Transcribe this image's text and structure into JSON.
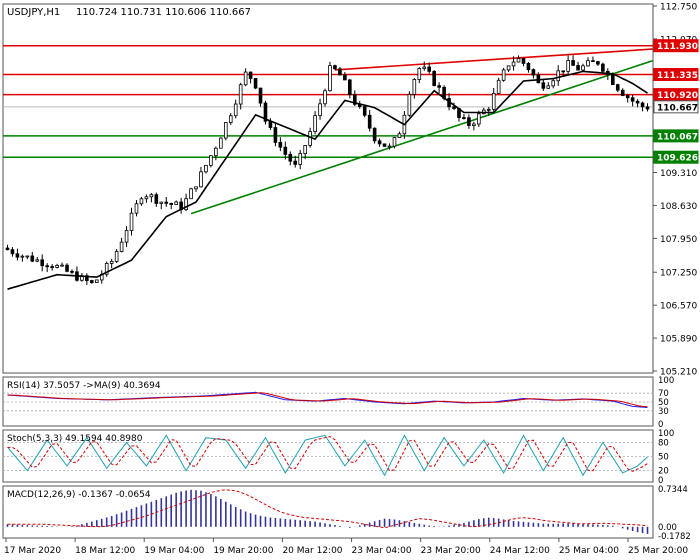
{
  "chart_data": {
    "type": "candlestick",
    "title": "USDJPY,H1",
    "ohlc_readout": "110.724 110.731 110.606 110.667",
    "price_axis": {
      "min": 105.21,
      "max": 112.75,
      "ticks": [
        "112.750",
        "112.070",
        "111.390",
        "110.710",
        "110.030",
        "109.310",
        "108.630",
        "107.950",
        "107.250",
        "106.570",
        "105.890",
        "105.210"
      ]
    },
    "x_axis_labels": [
      "17 Mar 2020",
      "18 Mar 12:00",
      "19 Mar 04:00",
      "19 Mar 20:00",
      "20 Mar 12:00",
      "23 Mar 04:00",
      "23 Mar 20:00",
      "24 Mar 12:00",
      "25 Mar 04:00",
      "25 Mar 20:00"
    ],
    "price_path": [
      [
        0,
        107.75
      ],
      [
        5,
        107.55
      ],
      [
        10,
        107.4
      ],
      [
        15,
        107.15
      ],
      [
        18,
        107.0
      ],
      [
        22,
        107.5
      ],
      [
        25,
        108.2
      ],
      [
        28,
        108.9
      ],
      [
        32,
        108.7
      ],
      [
        36,
        108.6
      ],
      [
        40,
        109.3
      ],
      [
        43,
        109.9
      ],
      [
        46,
        110.6
      ],
      [
        49,
        111.4
      ],
      [
        51,
        111.1
      ],
      [
        53,
        110.3
      ],
      [
        56,
        109.8
      ],
      [
        59,
        109.4
      ],
      [
        62,
        110.2
      ],
      [
        64,
        110.8
      ],
      [
        66,
        111.5
      ],
      [
        68,
        111.3
      ],
      [
        70,
        110.9
      ],
      [
        73,
        110.4
      ],
      [
        75,
        110.0
      ],
      [
        78,
        109.8
      ],
      [
        80,
        110.2
      ],
      [
        82,
        111.1
      ],
      [
        84,
        111.5
      ],
      [
        86,
        111.3
      ],
      [
        88,
        111.0
      ],
      [
        90,
        110.7
      ],
      [
        92,
        110.4
      ],
      [
        94,
        110.3
      ],
      [
        96,
        110.5
      ],
      [
        98,
        110.7
      ],
      [
        100,
        111.2
      ],
      [
        102,
        111.6
      ],
      [
        104,
        111.65
      ],
      [
        106,
        111.45
      ],
      [
        108,
        111.1
      ],
      [
        110,
        111.2
      ],
      [
        112,
        111.4
      ],
      [
        114,
        111.55
      ],
      [
        116,
        111.45
      ],
      [
        118,
        111.55
      ],
      [
        120,
        111.6
      ],
      [
        122,
        111.3
      ],
      [
        124,
        111.05
      ],
      [
        126,
        110.85
      ],
      [
        128,
        110.7
      ],
      [
        129,
        110.667
      ]
    ],
    "ma_path": [
      [
        0,
        106.9
      ],
      [
        10,
        107.2
      ],
      [
        18,
        107.15
      ],
      [
        25,
        107.5
      ],
      [
        32,
        108.4
      ],
      [
        38,
        108.7
      ],
      [
        44,
        109.6
      ],
      [
        50,
        110.5
      ],
      [
        56,
        110.25
      ],
      [
        62,
        110.0
      ],
      [
        68,
        110.8
      ],
      [
        74,
        110.65
      ],
      [
        80,
        110.3
      ],
      [
        86,
        111.0
      ],
      [
        92,
        110.55
      ],
      [
        98,
        110.55
      ],
      [
        104,
        111.2
      ],
      [
        110,
        111.25
      ],
      [
        116,
        111.4
      ],
      [
        122,
        111.35
      ],
      [
        126,
        111.15
      ],
      [
        129,
        110.95
      ]
    ],
    "horizontal_levels": [
      {
        "label": "111.930",
        "value": 111.93,
        "color": "#e00000"
      },
      {
        "label": "111.335",
        "value": 111.335,
        "color": "#e00000"
      },
      {
        "label": "110.920",
        "value": 110.92,
        "color": "#e00000"
      },
      {
        "label": "110.667",
        "value": 110.667,
        "color": "#555555"
      },
      {
        "label": "110.067",
        "value": 110.067,
        "color": "#008000"
      },
      {
        "label": "109.626",
        "value": 109.626,
        "color": "#008000"
      }
    ],
    "trendlines": [
      {
        "color": "#e00000",
        "from": [
          66,
          111.43
        ],
        "to": [
          130,
          111.86
        ]
      },
      {
        "color": "#008000",
        "from": [
          37,
          108.46
        ],
        "to": [
          130,
          111.62
        ]
      }
    ],
    "rsi": {
      "label": "RSI(14) 37.5057  ->MA(9) 40.3694",
      "min": 0,
      "max": 100,
      "ticks": [
        "100",
        "70",
        "50",
        "30",
        "0"
      ],
      "path": [
        [
          0,
          66
        ],
        [
          10,
          58
        ],
        [
          20,
          55
        ],
        [
          30,
          60
        ],
        [
          40,
          64
        ],
        [
          45,
          68
        ],
        [
          50,
          72
        ],
        [
          56,
          55
        ],
        [
          62,
          52
        ],
        [
          68,
          58
        ],
        [
          74,
          50
        ],
        [
          80,
          46
        ],
        [
          86,
          52
        ],
        [
          92,
          48
        ],
        [
          98,
          50
        ],
        [
          104,
          58
        ],
        [
          110,
          54
        ],
        [
          116,
          57
        ],
        [
          122,
          52
        ],
        [
          126,
          40
        ],
        [
          129,
          37.5
        ]
      ]
    },
    "stoch": {
      "label": "Stoch(5,3,3) 49.1594 40.8980",
      "min": 0,
      "max": 100,
      "ticks": [
        "100",
        "80",
        "50",
        "20",
        "0"
      ],
      "path": [
        [
          0,
          70
        ],
        [
          4,
          20
        ],
        [
          8,
          85
        ],
        [
          12,
          30
        ],
        [
          16,
          90
        ],
        [
          20,
          25
        ],
        [
          24,
          80
        ],
        [
          28,
          30
        ],
        [
          32,
          95
        ],
        [
          36,
          20
        ],
        [
          40,
          90
        ],
        [
          44,
          85
        ],
        [
          48,
          25
        ],
        [
          52,
          90
        ],
        [
          56,
          15
        ],
        [
          60,
          85
        ],
        [
          64,
          95
        ],
        [
          68,
          30
        ],
        [
          72,
          85
        ],
        [
          76,
          10
        ],
        [
          80,
          95
        ],
        [
          84,
          20
        ],
        [
          88,
          90
        ],
        [
          92,
          30
        ],
        [
          96,
          85
        ],
        [
          100,
          15
        ],
        [
          104,
          95
        ],
        [
          108,
          20
        ],
        [
          112,
          90
        ],
        [
          116,
          10
        ],
        [
          120,
          80
        ],
        [
          124,
          15
        ],
        [
          127,
          30
        ],
        [
          129,
          49
        ]
      ]
    },
    "macd": {
      "label": "MACD(12,26,9) -0.1367 -0.0654",
      "ticks": [
        "0.7344",
        "0.00",
        "-0.1782"
      ],
      "min": -0.1782,
      "max": 0.7344,
      "bars": [
        0.05,
        0.04,
        0.03,
        0.02,
        0.01,
        0.0,
        0.02,
        0.08,
        0.14,
        0.2,
        0.28,
        0.36,
        0.44,
        0.52,
        0.6,
        0.68,
        0.72,
        0.7,
        0.62,
        0.5,
        0.38,
        0.28,
        0.22,
        0.18,
        0.16,
        0.14,
        0.12,
        0.1,
        0.06,
        0.02,
        -0.02,
        0.04,
        0.1,
        0.16,
        0.14,
        0.1,
        0.06,
        0.02,
        0.0,
        0.04,
        0.08,
        0.14,
        0.18,
        0.16,
        0.12,
        0.1,
        0.08,
        0.06,
        0.06,
        0.07,
        0.06,
        0.05,
        0.04,
        0.02,
        -0.04,
        -0.1,
        -0.137
      ]
    }
  }
}
